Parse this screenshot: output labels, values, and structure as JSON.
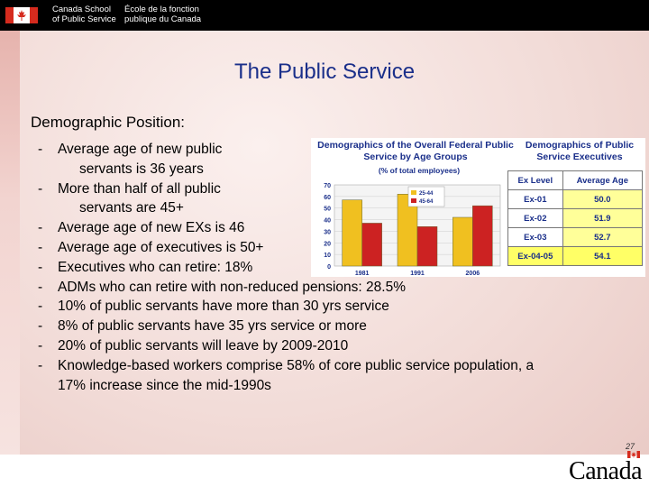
{
  "header": {
    "en_line1": "Canada School",
    "en_line2": "of Public Service",
    "fr_line1": "École de la fonction",
    "fr_line2": "publique du Canada"
  },
  "title": "The Public Service",
  "subtitle": "Demographic Position:",
  "bullets": [
    {
      "dash": "-",
      "line1": "Average age of new public",
      "line2": "servants is 36 years"
    },
    {
      "dash": "-",
      "line1": "More than half of all public",
      "line2": "servants are 45+"
    },
    {
      "dash": "-",
      "line1": "Average age of new EXs is 46"
    },
    {
      "dash": "-",
      "line1": "Average age of executives is 50+"
    },
    {
      "dash": "-",
      "line1": "Executives who can retire: 18%"
    },
    {
      "dash": "-",
      "line1": "ADMs who can retire with non-reduced pensions: 28.5%"
    },
    {
      "dash": "-",
      "line1": "10% of public servants have more than 30 yrs service"
    },
    {
      "dash": "-",
      "line1": "8% of public servants have 35 yrs service or more"
    },
    {
      "dash": "-",
      "line1": "20% of public servants will leave by 2009-2010"
    },
    {
      "dash": "-",
      "line1": "Knowledge-based workers comprise 58% of core public service population, a",
      "line2": "17% increase since the mid-1990s"
    }
  ],
  "chart_data": [
    {
      "type": "bar",
      "title": "Demographics of the Overall Federal Public Service by Age Groups",
      "subtitle": "(% of total employees)",
      "categories": [
        "1981",
        "1991",
        "2006"
      ],
      "series": [
        {
          "name": "25-44",
          "color": "#f0c020",
          "values": [
            57,
            62,
            42
          ]
        },
        {
          "name": "45-64",
          "color": "#cc2222",
          "values": [
            37,
            34,
            52
          ]
        }
      ],
      "yticks": [
        "0",
        "10",
        "20",
        "30",
        "40",
        "50",
        "60",
        "70"
      ],
      "ylim": [
        0,
        70
      ],
      "legend": "top-center"
    },
    {
      "type": "table",
      "title": "Demographics of Public Service Executives",
      "columns": [
        "Ex Level",
        "Average Age"
      ],
      "rows": [
        [
          "Ex-01",
          "50.0"
        ],
        [
          "Ex-02",
          "51.9"
        ],
        [
          "Ex-03",
          "52.7"
        ],
        [
          "Ex-04-05",
          "54.1"
        ]
      ]
    }
  ],
  "page_number": "27",
  "wordmark": "Canada",
  "colors": {
    "accent_red": "#d52b1e",
    "title_blue": "#1a2f8a"
  }
}
